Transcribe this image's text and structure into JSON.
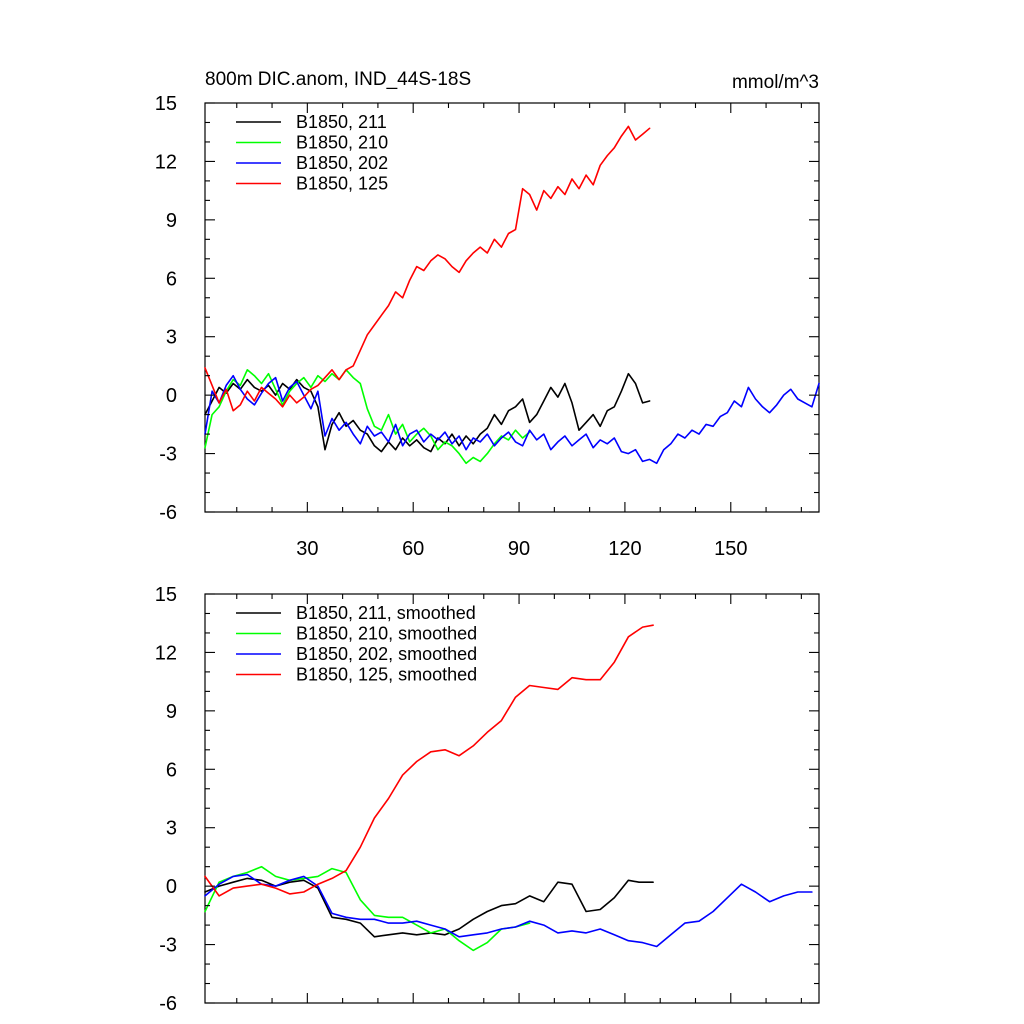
{
  "chart_data": [
    {
      "type": "line",
      "title": "800m DIC.anom, IND_44S-18S",
      "units": "mmol/m^3",
      "xlim": [
        1,
        175
      ],
      "ylim": [
        -6,
        15
      ],
      "xticks": [
        30,
        60,
        90,
        120,
        150
      ],
      "xtick_labels": [
        "30",
        "60",
        "90",
        "120",
        "150"
      ],
      "yticks": [
        -6,
        -3,
        0,
        3,
        6,
        9,
        12,
        15
      ],
      "ytick_labels": [
        "-6",
        "-3",
        "0",
        "3",
        "6",
        "9",
        "12",
        "15"
      ],
      "legend_position": "top-left",
      "series": [
        {
          "name": "B1850, 211",
          "color": "#000000",
          "x": [
            1,
            3,
            5,
            7,
            9,
            11,
            13,
            15,
            17,
            19,
            21,
            23,
            25,
            27,
            29,
            31,
            33,
            35,
            37,
            39,
            41,
            43,
            45,
            47,
            49,
            51,
            53,
            55,
            57,
            59,
            61,
            63,
            65,
            67,
            69,
            71,
            73,
            75,
            77,
            79,
            81,
            83,
            85,
            87,
            89,
            91,
            93,
            95,
            97,
            99,
            101,
            103,
            105,
            107,
            109,
            111,
            113,
            115,
            117,
            119,
            121,
            123,
            125,
            127
          ],
          "y": [
            -1.0,
            -0.3,
            0.4,
            0.1,
            0.6,
            0.3,
            0.8,
            0.4,
            0.2,
            0.5,
            0.0,
            0.6,
            0.3,
            0.8,
            0.4,
            0.2,
            -0.6,
            -2.8,
            -1.5,
            -0.9,
            -1.6,
            -1.3,
            -1.8,
            -2.0,
            -2.6,
            -2.9,
            -2.4,
            -2.8,
            -2.2,
            -2.6,
            -2.3,
            -2.7,
            -2.9,
            -2.2,
            -2.5,
            -2.0,
            -2.6,
            -2.1,
            -2.5,
            -2.0,
            -1.7,
            -1.0,
            -1.5,
            -0.8,
            -0.6,
            -0.2,
            -1.4,
            -1.0,
            -0.3,
            0.4,
            -0.1,
            0.6,
            -0.4,
            -1.8,
            -1.4,
            -1.0,
            -1.6,
            -0.8,
            -0.6,
            0.2,
            1.1,
            0.6,
            -0.4,
            -0.3
          ]
        },
        {
          "name": "B1850, 210",
          "color": "#00ff00",
          "x": [
            1,
            3,
            5,
            7,
            9,
            11,
            13,
            15,
            17,
            19,
            21,
            23,
            25,
            27,
            29,
            31,
            33,
            35,
            37,
            39,
            41,
            43,
            45,
            47,
            49,
            51,
            53,
            55,
            57,
            59,
            61,
            63,
            65,
            67,
            69,
            71,
            73,
            75,
            77,
            79,
            81,
            83,
            85,
            87,
            89,
            91,
            93
          ],
          "y": [
            -2.7,
            -1.0,
            -0.6,
            0.2,
            0.8,
            0.5,
            1.3,
            1.0,
            0.6,
            1.1,
            0.3,
            -0.5,
            0.2,
            0.6,
            0.9,
            0.4,
            1.0,
            0.7,
            1.1,
            0.8,
            1.3,
            0.9,
            0.6,
            -0.7,
            -1.6,
            -1.8,
            -1.0,
            -2.0,
            -1.5,
            -2.4,
            -2.0,
            -1.7,
            -2.1,
            -2.8,
            -2.4,
            -2.6,
            -3.0,
            -3.5,
            -3.2,
            -3.4,
            -3.0,
            -2.5,
            -2.1,
            -2.3,
            -1.8,
            -2.2,
            -1.9
          ]
        },
        {
          "name": "B1850, 202",
          "color": "#0000ff",
          "x": [
            1,
            3,
            5,
            7,
            9,
            11,
            13,
            15,
            17,
            19,
            21,
            23,
            25,
            27,
            29,
            31,
            33,
            35,
            37,
            39,
            41,
            43,
            45,
            47,
            49,
            51,
            53,
            55,
            57,
            59,
            61,
            63,
            65,
            67,
            69,
            71,
            73,
            75,
            77,
            79,
            81,
            83,
            85,
            87,
            89,
            91,
            93,
            95,
            97,
            99,
            101,
            103,
            105,
            107,
            109,
            111,
            113,
            115,
            117,
            119,
            121,
            123,
            125,
            127,
            129,
            131,
            133,
            135,
            137,
            139,
            141,
            143,
            145,
            147,
            149,
            151,
            153,
            155,
            157,
            159,
            161,
            163,
            165,
            167,
            169,
            171,
            173,
            175
          ],
          "y": [
            -2.0,
            0.2,
            -0.4,
            0.5,
            1.0,
            0.3,
            -0.2,
            -0.5,
            0.1,
            0.6,
            0.9,
            -0.3,
            0.4,
            0.7,
            0.0,
            -0.7,
            0.2,
            -2.1,
            -1.2,
            -1.8,
            -1.4,
            -2.0,
            -2.5,
            -1.6,
            -2.1,
            -1.9,
            -2.4,
            -1.5,
            -2.6,
            -2.0,
            -1.8,
            -2.4,
            -2.0,
            -2.3,
            -1.9,
            -2.5,
            -2.1,
            -2.8,
            -2.2,
            -2.4,
            -2.0,
            -2.6,
            -2.2,
            -1.9,
            -2.4,
            -2.6,
            -1.8,
            -2.3,
            -2.0,
            -2.8,
            -2.4,
            -2.1,
            -2.6,
            -2.3,
            -2.0,
            -2.7,
            -2.3,
            -2.5,
            -2.2,
            -2.9,
            -3.0,
            -2.8,
            -3.4,
            -3.3,
            -3.5,
            -2.8,
            -2.5,
            -2.0,
            -2.2,
            -1.8,
            -2.0,
            -1.5,
            -1.6,
            -1.1,
            -0.9,
            -0.3,
            -0.6,
            0.4,
            -0.2,
            -0.6,
            -0.9,
            -0.5,
            0.0,
            0.3,
            -0.2,
            -0.4,
            -0.6,
            0.6
          ]
        },
        {
          "name": "B1850, 125",
          "color": "#ff0000",
          "x": [
            1,
            3,
            5,
            7,
            9,
            11,
            13,
            15,
            17,
            19,
            21,
            23,
            25,
            27,
            29,
            31,
            33,
            35,
            37,
            39,
            41,
            43,
            45,
            47,
            49,
            51,
            53,
            55,
            57,
            59,
            61,
            63,
            65,
            67,
            69,
            71,
            73,
            75,
            77,
            79,
            81,
            83,
            85,
            87,
            89,
            91,
            93,
            95,
            97,
            99,
            101,
            103,
            105,
            107,
            109,
            111,
            113,
            115,
            117,
            119,
            121,
            123,
            125,
            127
          ],
          "y": [
            1.4,
            0.5,
            -0.4,
            0.3,
            -0.8,
            -0.5,
            0.2,
            -0.3,
            0.4,
            0.1,
            -0.2,
            -0.6,
            0.0,
            -0.4,
            -0.1,
            0.3,
            0.5,
            0.9,
            1.3,
            0.8,
            1.3,
            1.5,
            2.3,
            3.1,
            3.6,
            4.1,
            4.6,
            5.3,
            5.0,
            5.9,
            6.6,
            6.4,
            6.9,
            7.2,
            7.0,
            6.6,
            6.3,
            6.9,
            7.3,
            7.6,
            7.3,
            8.0,
            7.6,
            8.3,
            8.5,
            10.6,
            10.3,
            9.5,
            10.5,
            10.1,
            10.7,
            10.3,
            11.1,
            10.6,
            11.3,
            10.8,
            11.8,
            12.3,
            12.7,
            13.3,
            13.8,
            13.1,
            13.4,
            13.7
          ]
        }
      ]
    },
    {
      "type": "line",
      "title": "",
      "xlim": [
        1,
        175
      ],
      "ylim": [
        -6,
        15
      ],
      "xticks": [
        30,
        60,
        90,
        120,
        150
      ],
      "xtick_labels": [],
      "yticks": [
        -6,
        -3,
        0,
        3,
        6,
        9,
        12,
        15
      ],
      "ytick_labels": [
        "-6",
        "-3",
        "0",
        "3",
        "6",
        "9",
        "12",
        "15"
      ],
      "legend_position": "top-left",
      "series": [
        {
          "name": "B1850, 211, smoothed",
          "color": "#000000",
          "x": [
            1,
            5,
            9,
            13,
            17,
            21,
            25,
            29,
            33,
            37,
            41,
            45,
            49,
            53,
            57,
            61,
            65,
            69,
            73,
            77,
            81,
            85,
            89,
            93,
            97,
            101,
            105,
            109,
            113,
            117,
            121,
            124,
            125,
            128
          ],
          "y": [
            -0.3,
            0.0,
            0.2,
            0.4,
            0.3,
            0.0,
            0.2,
            0.3,
            -0.1,
            -1.6,
            -1.7,
            -1.9,
            -2.6,
            -2.5,
            -2.4,
            -2.5,
            -2.4,
            -2.5,
            -2.2,
            -1.7,
            -1.3,
            -1.0,
            -0.9,
            -0.5,
            -0.8,
            0.2,
            0.1,
            -1.3,
            -1.2,
            -0.6,
            0.3,
            0.2,
            0.2,
            0.2
          ]
        },
        {
          "name": "B1850, 210, smoothed",
          "color": "#00ff00",
          "x": [
            1,
            5,
            9,
            13,
            17,
            21,
            25,
            29,
            33,
            37,
            41,
            45,
            49,
            53,
            57,
            61,
            65,
            69,
            73,
            77,
            81,
            85,
            89,
            93
          ],
          "y": [
            -1.3,
            0.2,
            0.5,
            0.7,
            1.0,
            0.5,
            0.3,
            0.4,
            0.5,
            0.9,
            0.7,
            -0.7,
            -1.5,
            -1.6,
            -1.6,
            -2.0,
            -2.4,
            -2.2,
            -2.8,
            -3.3,
            -2.9,
            -2.2,
            -2.1,
            -1.9
          ]
        },
        {
          "name": "B1850, 202, smoothed",
          "color": "#0000ff",
          "x": [
            1,
            5,
            9,
            13,
            17,
            21,
            25,
            29,
            33,
            37,
            41,
            45,
            49,
            53,
            57,
            61,
            65,
            69,
            73,
            77,
            81,
            85,
            89,
            93,
            97,
            101,
            105,
            109,
            113,
            117,
            121,
            125,
            129,
            133,
            137,
            141,
            145,
            149,
            153,
            157,
            161,
            165,
            169,
            173
          ],
          "y": [
            -0.5,
            0.1,
            0.5,
            0.6,
            0.1,
            0.0,
            0.3,
            0.5,
            0.0,
            -1.4,
            -1.6,
            -1.7,
            -1.7,
            -1.9,
            -1.9,
            -1.8,
            -2.0,
            -2.2,
            -2.6,
            -2.5,
            -2.4,
            -2.2,
            -2.1,
            -1.8,
            -2.0,
            -2.4,
            -2.3,
            -2.4,
            -2.2,
            -2.5,
            -2.8,
            -2.9,
            -3.1,
            -2.5,
            -1.9,
            -1.8,
            -1.3,
            -0.6,
            0.1,
            -0.3,
            -0.8,
            -0.5,
            -0.3,
            -0.3
          ]
        },
        {
          "name": "B1850, 125, smoothed",
          "color": "#ff0000",
          "x": [
            1,
            5,
            9,
            13,
            17,
            21,
            25,
            29,
            33,
            37,
            41,
            45,
            49,
            53,
            57,
            61,
            65,
            69,
            73,
            77,
            81,
            85,
            89,
            93,
            97,
            101,
            105,
            109,
            113,
            117,
            121,
            125,
            128
          ],
          "y": [
            0.5,
            -0.5,
            -0.1,
            0.0,
            0.1,
            -0.1,
            -0.4,
            -0.3,
            0.1,
            0.4,
            0.8,
            2.0,
            3.5,
            4.5,
            5.7,
            6.4,
            6.9,
            7.0,
            6.7,
            7.2,
            7.9,
            8.5,
            9.7,
            10.3,
            10.2,
            10.1,
            10.7,
            10.6,
            10.6,
            11.5,
            12.8,
            13.3,
            13.4
          ]
        }
      ]
    }
  ]
}
